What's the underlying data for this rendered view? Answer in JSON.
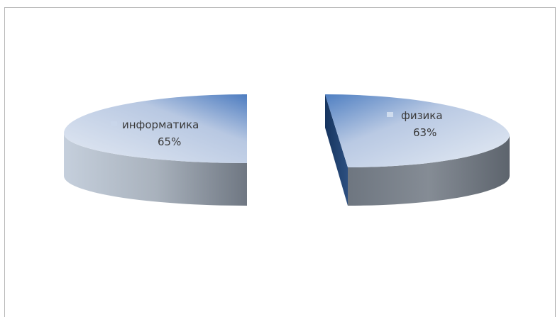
{
  "chart_data": {
    "type": "pie",
    "style": "3d",
    "categories": [
      "информатика",
      "физика"
    ],
    "values": [
      65,
      63
    ],
    "labels": [
      "информатика\n65%",
      "физика\n63%"
    ],
    "colors": {
      "top_start": "#4f7fc2",
      "top_end": "#dfe6f1",
      "side_dark": "#1f3b64",
      "side_light": "#8d949c",
      "label_marker": "#b7c9e6"
    },
    "slices": [
      {
        "name": "информатика",
        "value_label": "65%"
      },
      {
        "name": "физика",
        "value_label": "63%"
      }
    ]
  }
}
